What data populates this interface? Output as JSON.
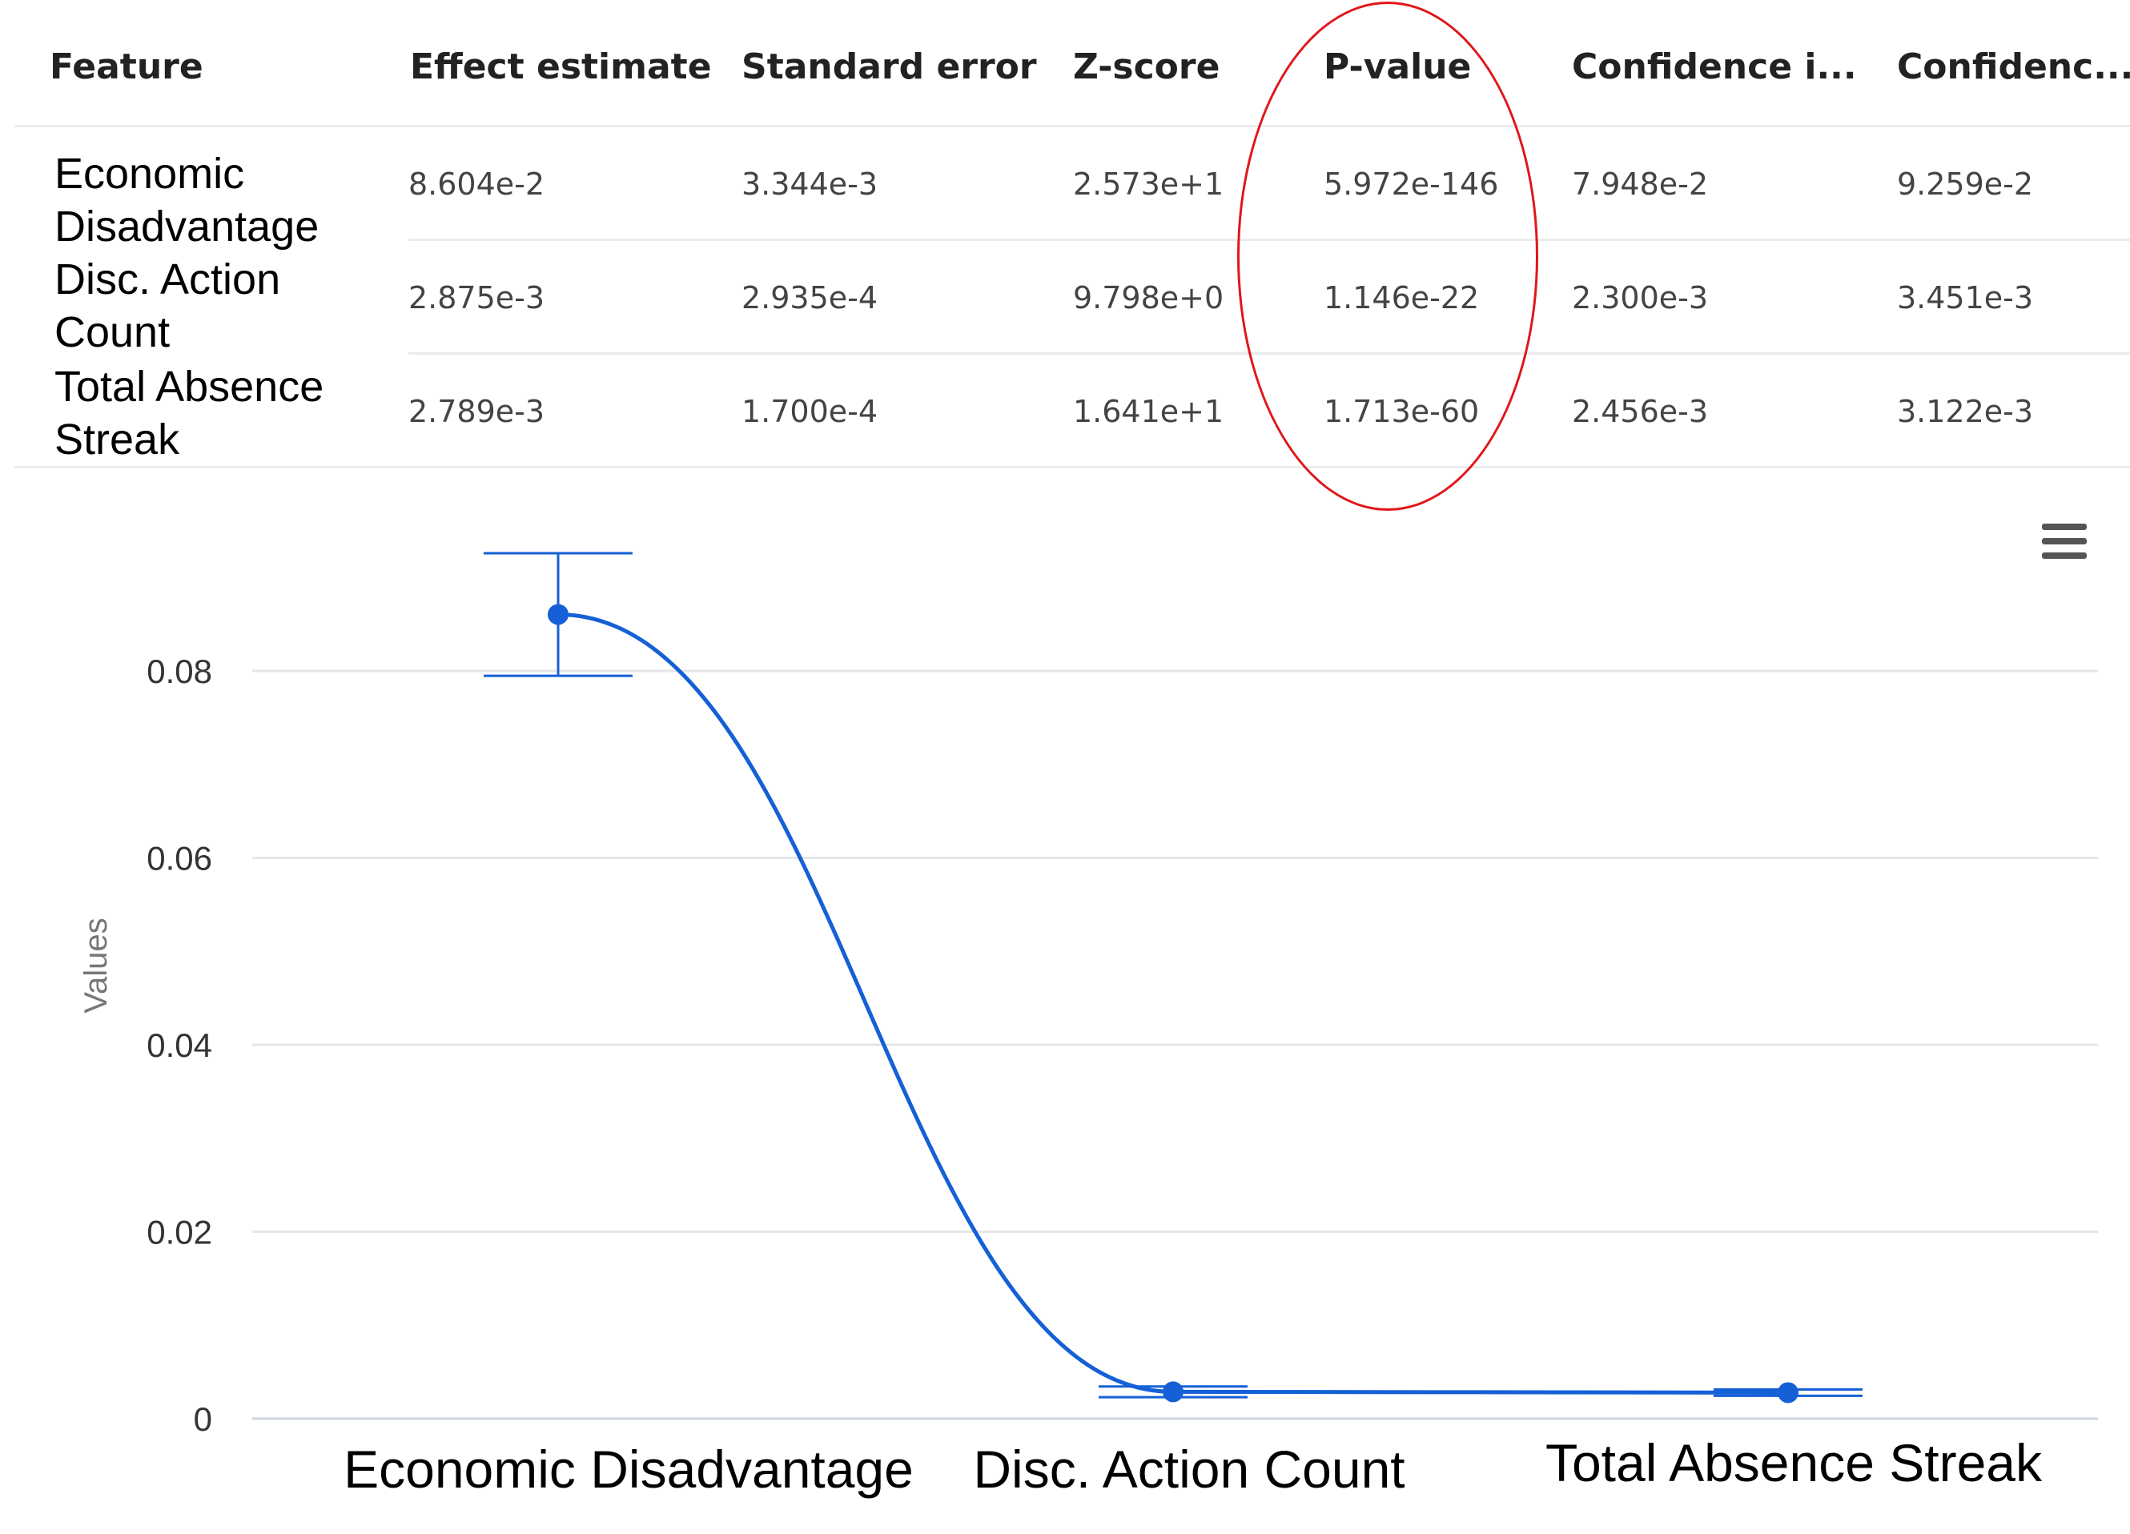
{
  "table": {
    "columns": [
      "Feature",
      "Effect estimate",
      "Standard error",
      "Z-score",
      "P-value",
      "Confidence i...",
      "Confidenc..."
    ],
    "rows": [
      {
        "feature_lines": [
          "Economic",
          "Disadvantage"
        ],
        "values": [
          "8.604e-2",
          "3.344e-3",
          "2.573e+1",
          "5.972e-146",
          "7.948e-2",
          "9.259e-2"
        ]
      },
      {
        "feature_lines": [
          "Disc. Action",
          "Count"
        ],
        "values": [
          "2.875e-3",
          "2.935e-4",
          "9.798e+0",
          "1.146e-22",
          "2.300e-3",
          "3.451e-3"
        ]
      },
      {
        "feature_lines": [
          "Total Absence",
          "Streak"
        ],
        "values": [
          "2.789e-3",
          "1.700e-4",
          "1.641e+1",
          "1.713e-60",
          "2.456e-3",
          "3.122e-3"
        ]
      }
    ],
    "highlight_column": "P-value",
    "highlight_color": "#e0161b"
  },
  "chart_menu_icon": "hamburger-menu-icon",
  "chart_data": {
    "type": "line",
    "categories": [
      "Economic Disadvantage",
      "Disc. Action Count",
      "Total Absence Streak"
    ],
    "series": [
      {
        "values": [
          0.08604,
          0.002875,
          0.002789
        ],
        "error_low": [
          0.07948,
          0.0023,
          0.002456
        ],
        "error_high": [
          0.09259,
          0.003451,
          0.003122
        ],
        "color": "#1560d6"
      }
    ],
    "ylabel": "Values",
    "ylim": [
      0,
      0.08
    ],
    "yticks": [
      0,
      0.02,
      0.04,
      0.06,
      0.08
    ],
    "ytick_labels": [
      "0",
      "0.02",
      "0.04",
      "0.06",
      "0.08"
    ],
    "grid": true,
    "smooth": true,
    "error_bars": true
  }
}
